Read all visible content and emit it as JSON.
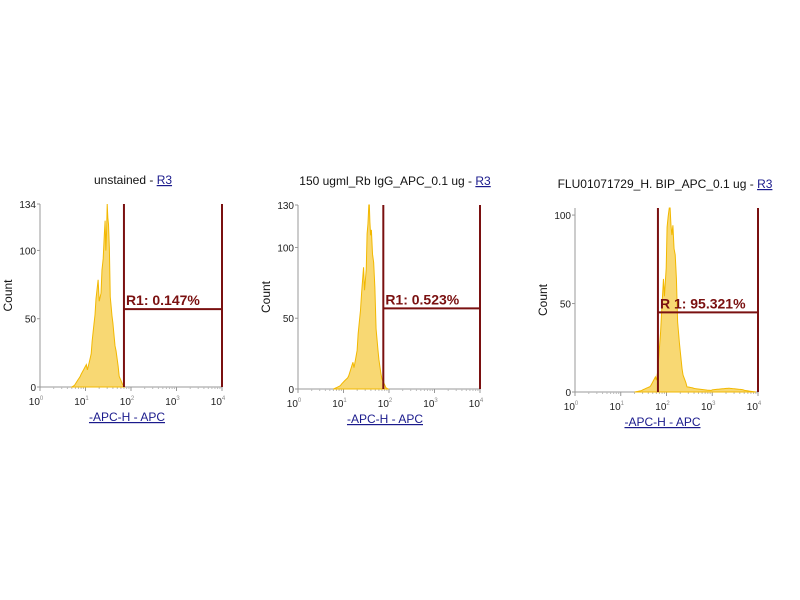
{
  "chart_data": [
    {
      "type": "histogram",
      "title": "unstained - ",
      "title_link": "R3",
      "xlabel": "-APC-H - APC",
      "ylabel": "Count",
      "x_scale": "log",
      "xlim": [
        1,
        10000
      ],
      "ylim": [
        0,
        134
      ],
      "x_ticks": [
        {
          "base": "10",
          "exp": "0"
        },
        {
          "base": "10",
          "exp": "1"
        },
        {
          "base": "10",
          "exp": "2"
        },
        {
          "base": "10",
          "exp": "3"
        },
        {
          "base": "10",
          "exp": "4"
        }
      ],
      "y_ticks": [
        "0",
        "50",
        "100",
        "134"
      ],
      "y_tick_values": [
        0,
        50,
        100,
        134
      ],
      "gate": {
        "label": "R1: 0.147%",
        "x_range": [
          70,
          10000
        ],
        "y": 57
      },
      "points": [
        [
          5,
          0
        ],
        [
          6,
          2
        ],
        [
          8,
          8
        ],
        [
          11,
          15
        ],
        [
          14,
          30
        ],
        [
          17,
          55
        ],
        [
          20,
          72
        ],
        [
          23,
          78
        ],
        [
          26,
          95
        ],
        [
          28,
          110
        ],
        [
          30,
          134
        ],
        [
          32,
          100
        ],
        [
          35,
          70
        ],
        [
          40,
          45
        ],
        [
          47,
          22
        ],
        [
          55,
          8
        ],
        [
          65,
          2
        ],
        [
          72,
          0
        ]
      ]
    },
    {
      "type": "histogram",
      "title": "150 ugml_Rb IgG_APC_0.1 ug - ",
      "title_link": "R3",
      "xlabel": "-APC-H - APC",
      "ylabel": "Count",
      "x_scale": "log",
      "xlim": [
        1,
        10000
      ],
      "ylim": [
        0,
        130
      ],
      "x_ticks": [
        {
          "base": "10",
          "exp": "0"
        },
        {
          "base": "10",
          "exp": "1"
        },
        {
          "base": "10",
          "exp": "2"
        },
        {
          "base": "10",
          "exp": "3"
        },
        {
          "base": "10",
          "exp": "4"
        }
      ],
      "y_ticks": [
        "0",
        "50",
        "100",
        "130"
      ],
      "y_tick_values": [
        0,
        50,
        100,
        130
      ],
      "gate": {
        "label": "R1: 0.523%",
        "x_range": [
          75,
          10000
        ],
        "y": 57
      },
      "points": [
        [
          6,
          0
        ],
        [
          9,
          3
        ],
        [
          13,
          8
        ],
        [
          17,
          18
        ],
        [
          21,
          35
        ],
        [
          25,
          58
        ],
        [
          29,
          80
        ],
        [
          33,
          100
        ],
        [
          36,
          115
        ],
        [
          38,
          130
        ],
        [
          41,
          105
        ],
        [
          46,
          75
        ],
        [
          52,
          45
        ],
        [
          60,
          20
        ],
        [
          70,
          6
        ],
        [
          85,
          1
        ],
        [
          95,
          0
        ]
      ]
    },
    {
      "type": "histogram",
      "title": "FLU01071729_H. BIP_APC_0.1 ug - ",
      "title_link": "R3",
      "xlabel": "-APC-H - APC",
      "ylabel": "Count",
      "x_scale": "log",
      "xlim": [
        1,
        10000
      ],
      "ylim": [
        0,
        104
      ],
      "x_ticks": [
        {
          "base": "10",
          "exp": "0"
        },
        {
          "base": "10",
          "exp": "1"
        },
        {
          "base": "10",
          "exp": "2"
        },
        {
          "base": "10",
          "exp": "3"
        },
        {
          "base": "10",
          "exp": "4"
        }
      ],
      "y_ticks": [
        "0",
        "50",
        "100"
      ],
      "y_tick_values": [
        0,
        50,
        100
      ],
      "gate": {
        "label": "R 1: 95.321%",
        "x_range": [
          65,
          10000
        ],
        "y": 45
      },
      "points": [
        [
          20,
          0
        ],
        [
          30,
          1
        ],
        [
          45,
          3
        ],
        [
          60,
          8
        ],
        [
          68,
          18
        ],
        [
          78,
          38
        ],
        [
          90,
          62
        ],
        [
          103,
          85
        ],
        [
          115,
          98
        ],
        [
          125,
          104
        ],
        [
          138,
          88
        ],
        [
          155,
          65
        ],
        [
          175,
          42
        ],
        [
          200,
          22
        ],
        [
          230,
          8
        ],
        [
          280,
          3
        ],
        [
          400,
          2
        ],
        [
          1000,
          1
        ],
        [
          2500,
          2
        ],
        [
          5000,
          1
        ],
        [
          9000,
          0
        ]
      ]
    }
  ],
  "colors": {
    "histogram": "#f2b800",
    "gate": "#7a1010",
    "axis": "#999999",
    "link": "#1a1a8c"
  }
}
